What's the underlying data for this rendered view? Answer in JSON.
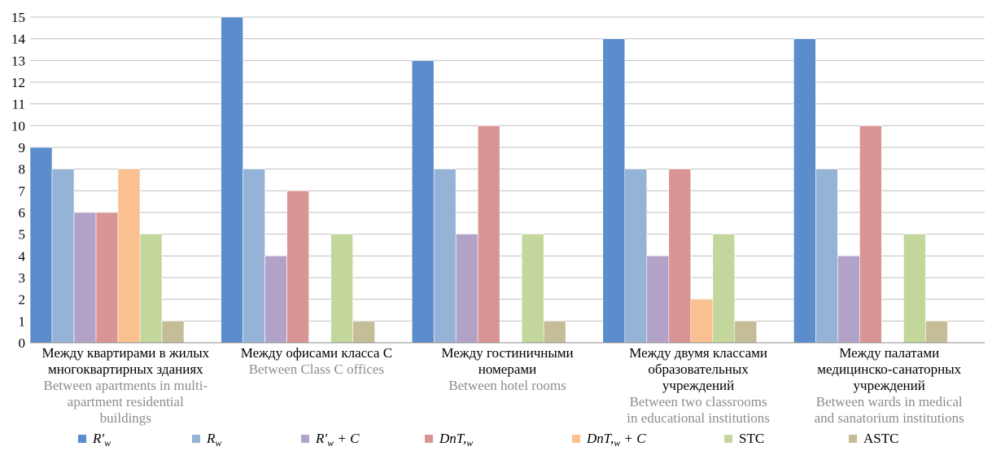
{
  "chart_data": {
    "type": "bar",
    "ylim": [
      0,
      15
    ],
    "yticks": [
      "0",
      "1",
      "2",
      "3",
      "4",
      "5",
      "6",
      "7",
      "8",
      "9",
      "10",
      "11",
      "12",
      "13",
      "14",
      "15"
    ],
    "grid": true,
    "legend_position": "bottom",
    "categories": [
      {
        "ru": [
          "Между квартирами в жилых",
          "многоквартирных зданиях"
        ],
        "en": [
          "Between apartments in multi-",
          "apartment residential",
          "buildings"
        ]
      },
      {
        "ru": [
          "Между офисами класса С"
        ],
        "en": [
          "Between Class C offices"
        ]
      },
      {
        "ru": [
          "Между гостиничными",
          "номерами"
        ],
        "en": [
          "Between hotel rooms"
        ]
      },
      {
        "ru": [
          "Между двумя классами",
          "образовательных",
          "учреждений"
        ],
        "en": [
          "Between two classrooms",
          "in educational institutions"
        ]
      },
      {
        "ru": [
          "Между палатами",
          "медицинско-санаторных",
          "учреждений"
        ],
        "en": [
          "Between wards in medical",
          "and sanatorium institutions"
        ]
      }
    ],
    "series": [
      {
        "name": "R′w",
        "color": "#5b8ccc",
        "values": [
          9,
          15,
          13,
          14,
          14
        ]
      },
      {
        "name": "Rw",
        "color": "#95b3d7",
        "values": [
          8,
          8,
          8,
          8,
          8
        ]
      },
      {
        "name": "R′w + C",
        "color": "#b3a2c7",
        "values": [
          6,
          4,
          5,
          4,
          4
        ]
      },
      {
        "name": "DnT,w",
        "color": "#d99594",
        "values": [
          6,
          7,
          10,
          8,
          10
        ]
      },
      {
        "name": "DnT,w + C",
        "color": "#fac08f",
        "values": [
          8,
          null,
          null,
          2,
          null
        ]
      },
      {
        "name": "STC",
        "color": "#c3d69b",
        "values": [
          5,
          5,
          5,
          5,
          5
        ]
      },
      {
        "name": "ASTC",
        "color": "#c4bd97",
        "values": [
          1,
          1,
          1,
          1,
          1
        ]
      }
    ],
    "legend_labels": [
      {
        "main": "R′",
        "sub": "w",
        "rest": ""
      },
      {
        "main": "R",
        "sub": "w",
        "rest": ""
      },
      {
        "main": "R′",
        "sub": "w",
        "rest": " + C"
      },
      {
        "main": "DnT,",
        "sub": "w",
        "rest": ""
      },
      {
        "main": "DnT,",
        "sub": "w",
        "rest": " + C"
      },
      {
        "main": "STC",
        "sub": "",
        "rest": ""
      },
      {
        "main": "ASTC",
        "sub": "",
        "rest": ""
      }
    ]
  }
}
